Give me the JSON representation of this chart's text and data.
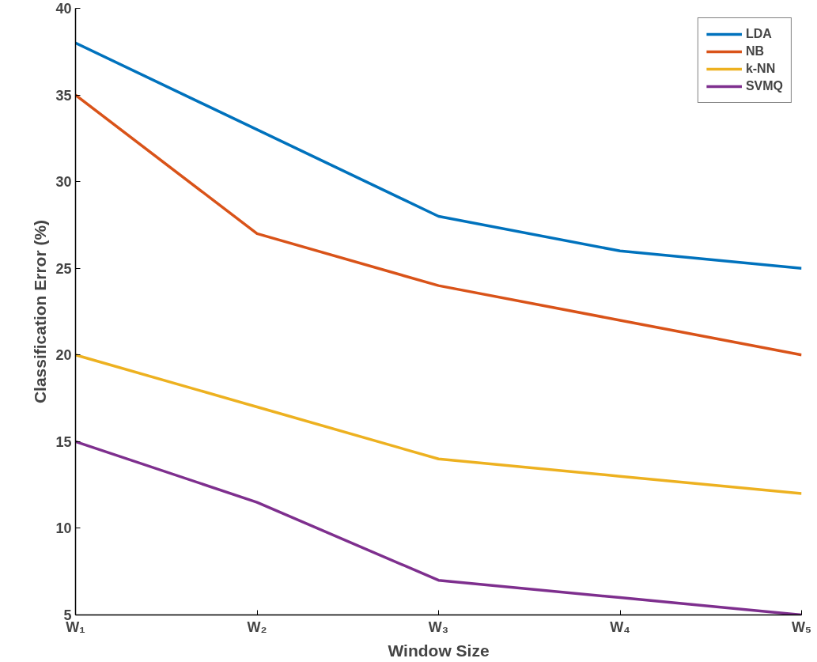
{
  "chart_data": {
    "type": "line",
    "xlabel": "Window Size",
    "ylabel": "Classification Error (%)",
    "categories": [
      "W₁",
      "W₂",
      "W₃",
      "W₄",
      "W₅"
    ],
    "series": [
      {
        "name": "LDA",
        "color": "#0072bd",
        "values": [
          38,
          33,
          28,
          26,
          25
        ]
      },
      {
        "name": "NB",
        "color": "#d95319",
        "values": [
          35,
          27,
          24,
          22,
          20
        ]
      },
      {
        "name": "k-NN",
        "color": "#edb120",
        "values": [
          20,
          17,
          14,
          13,
          12
        ]
      },
      {
        "name": "SVMQ",
        "color": "#7e2f8e",
        "values": [
          15,
          11.5,
          7,
          6,
          5
        ]
      }
    ],
    "ylim": [
      5,
      40
    ],
    "yticks": [
      5,
      10,
      15,
      20,
      25,
      30,
      35,
      40
    ],
    "grid": false,
    "legend": "top right",
    "marker": "none",
    "line_style": "solid"
  }
}
